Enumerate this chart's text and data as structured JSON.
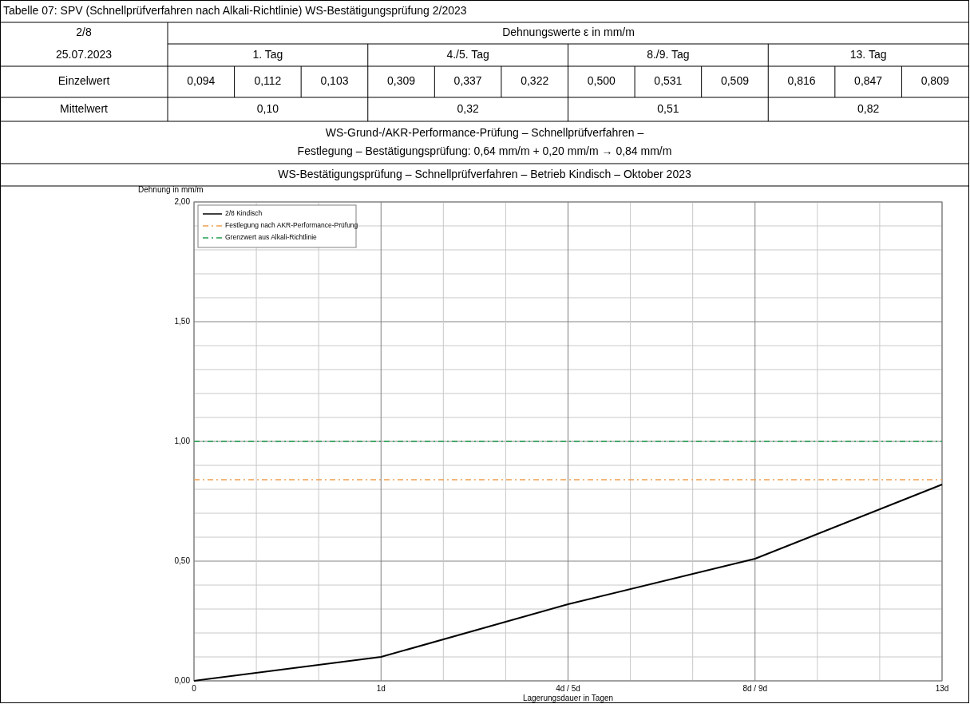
{
  "chart_data": {
    "type": "line",
    "title": "Tabelle 07: SPV (Schnellprüfverfahren nach Alkali-Richtlinie) WS-Bestätigungsprüfung 2/2023",
    "annotations": [
      "2/8",
      "25.07.2023",
      "Dehnungswerte ε in mm/m",
      "1. Tag",
      "4./5. Tag",
      "8./9. Tag",
      "13. Tag",
      "Einzelwert",
      "0,094",
      "0,112",
      "0,103",
      "0,309",
      "0,337",
      "0,322",
      "0,500",
      "0,531",
      "0,509",
      "0,816",
      "0,847",
      "0,809",
      "Mittelwert",
      "0,10",
      "0,32",
      "0,51",
      "0,82",
      "WS-Grund-/AKR-Performance-Prüfung – Schnellprüfverfahren –",
      "Festlegung – Bestätigungsprüfung: 0,64 mm/m + 0,20 mm/m → 0,84 mm/m",
      "WS-Bestätigungsprüfung – Schnellprüfverfahren – Betrieb Kindisch – Oktober 2023"
    ],
    "categories": [
      "0",
      "1d",
      "4d / 5d",
      "8d / 9d",
      "13d"
    ],
    "series": [
      {
        "name": "2/8 Kindisch",
        "color": "#000000",
        "values": [
          0,
          0.1,
          0.32,
          0.51,
          0.82
        ]
      }
    ],
    "ref_lines": [
      {
        "axis": "y",
        "value": 0.84,
        "label": "Festlegung nach AKR-Performance-Prüfung",
        "color": "#f0a050",
        "line_style": "dashed"
      },
      {
        "axis": "y",
        "value": 1.0,
        "label": "Grenzwert aus Alkali-Richtlinie",
        "color": "#20a050",
        "line_style": "dashed"
      }
    ],
    "ylim": [
      0,
      2
    ],
    "yticks": [
      {
        "value": 0,
        "label": "0,00"
      },
      {
        "value": 0.5,
        "label": "0,50"
      },
      {
        "value": 1,
        "label": "1,00"
      },
      {
        "value": 1.5,
        "label": "1,50"
      },
      {
        "value": 2,
        "label": "2,00"
      }
    ],
    "ylabel": "Dehnung in mm/m",
    "xlabel": "Lagerungsdauer in Tagen",
    "grid": true,
    "legend": "top left",
    "line_style": "solid",
    "marker": "none"
  }
}
